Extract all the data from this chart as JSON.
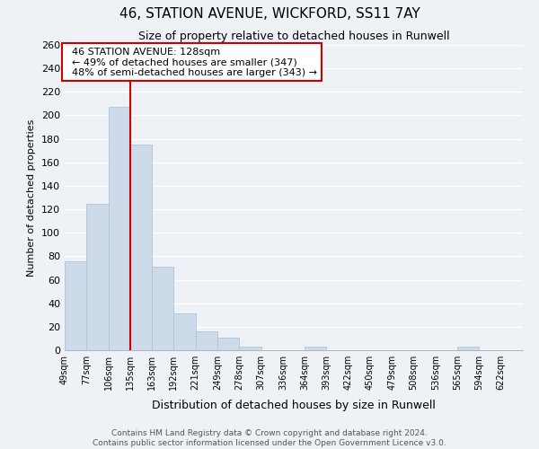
{
  "title1": "46, STATION AVENUE, WICKFORD, SS11 7AY",
  "title2": "Size of property relative to detached houses in Runwell",
  "xlabel": "Distribution of detached houses by size in Runwell",
  "ylabel": "Number of detached properties",
  "bin_labels": [
    "49sqm",
    "77sqm",
    "106sqm",
    "135sqm",
    "163sqm",
    "192sqm",
    "221sqm",
    "249sqm",
    "278sqm",
    "307sqm",
    "336sqm",
    "364sqm",
    "393sqm",
    "422sqm",
    "450sqm",
    "479sqm",
    "508sqm",
    "536sqm",
    "565sqm",
    "594sqm",
    "622sqm"
  ],
  "bar_heights": [
    76,
    125,
    207,
    175,
    71,
    31,
    16,
    11,
    3,
    0,
    0,
    3,
    0,
    0,
    0,
    0,
    0,
    0,
    3,
    0,
    0
  ],
  "bar_color": "#cddaea",
  "bar_edge_color": "#aec4d6",
  "vline_x_index": 3,
  "vline_color": "#cc0000",
  "annotation_title": "46 STATION AVENUE: 128sqm",
  "annotation_line1": "← 49% of detached houses are smaller (347)",
  "annotation_line2": "48% of semi-detached houses are larger (343) →",
  "annotation_box_facecolor": "#ffffff",
  "annotation_box_edgecolor": "#cc0000",
  "ylim": [
    0,
    260
  ],
  "yticks": [
    0,
    20,
    40,
    60,
    80,
    100,
    120,
    140,
    160,
    180,
    200,
    220,
    240,
    260
  ],
  "footer1": "Contains HM Land Registry data © Crown copyright and database right 2024.",
  "footer2": "Contains public sector information licensed under the Open Government Licence v3.0.",
  "bg_color": "#eef2f7",
  "plot_bg_color": "#eef2f7",
  "grid_color": "#ffffff"
}
